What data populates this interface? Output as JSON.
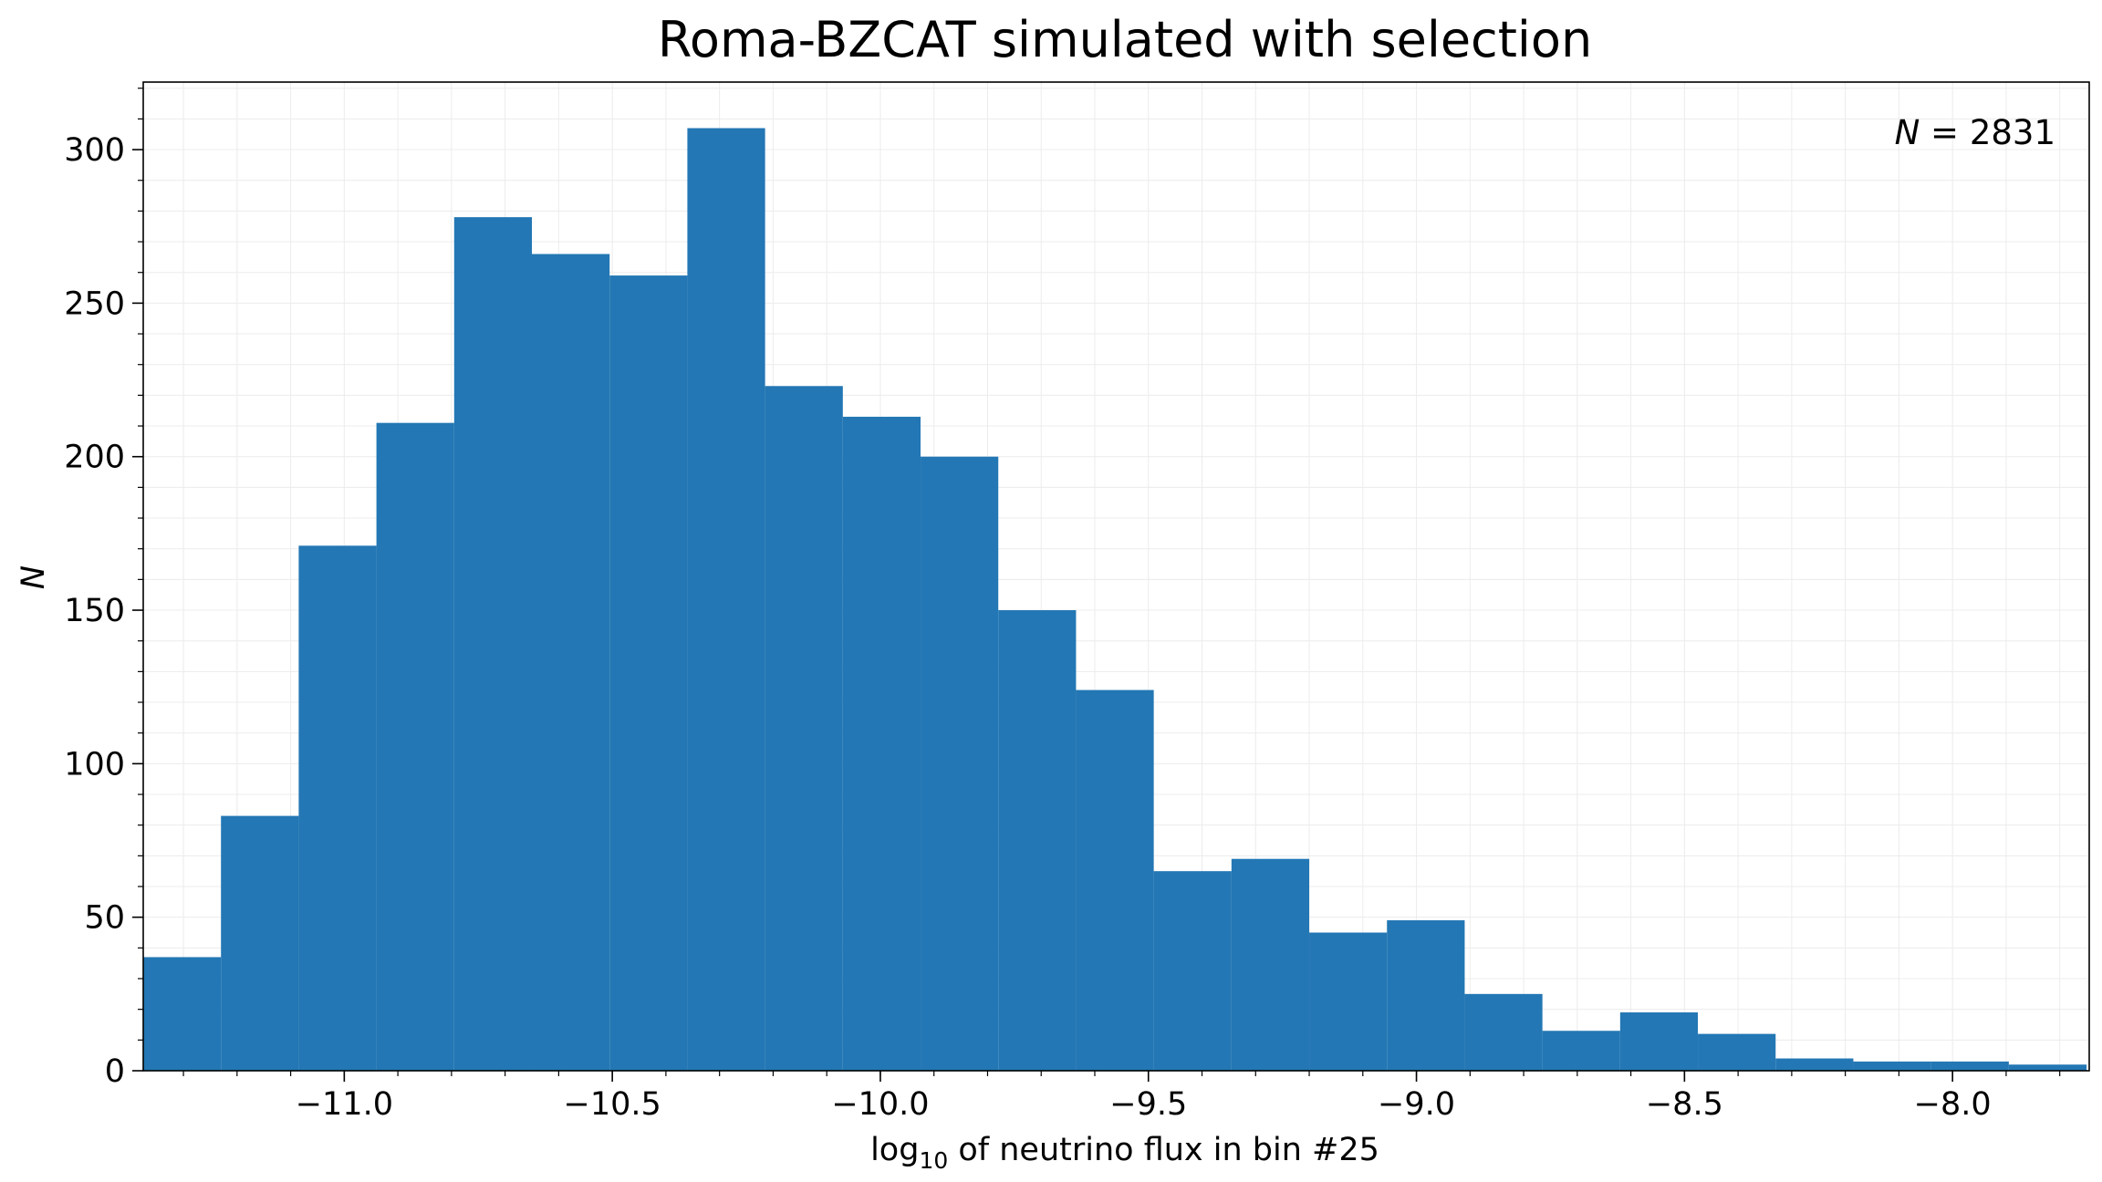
{
  "chart_data": {
    "type": "bar",
    "title": "Roma-BZCAT simulated with selection",
    "xlabel_prefix": "log",
    "xlabel_subscript": "10",
    "xlabel_suffix": " of neutrino flux in bin #25",
    "ylabel": "N",
    "annotation": {
      "var": "N",
      "op": " = ",
      "value": "2831"
    },
    "xlim": [
      -11.375,
      -7.745
    ],
    "ylim": [
      0,
      322
    ],
    "xticks": [
      -11.0,
      -10.5,
      -10.0,
      -9.5,
      -9.0,
      -8.5,
      -8.0
    ],
    "xtick_labels": [
      "−11.0",
      "−10.5",
      "−10.0",
      "−9.5",
      "−9.0",
      "−8.5",
      "−8.0"
    ],
    "yticks": [
      0,
      50,
      100,
      150,
      200,
      250,
      300
    ],
    "ytick_labels": [
      "0",
      "50",
      "100",
      "150",
      "200",
      "250",
      "300"
    ],
    "bin_edges": [
      -11.375,
      -11.23,
      -11.085,
      -10.94,
      -10.795,
      -10.65,
      -10.505,
      -10.36,
      -10.215,
      -10.07,
      -9.925,
      -9.78,
      -9.635,
      -9.49,
      -9.345,
      -9.2,
      -9.055,
      -8.91,
      -8.765,
      -8.62,
      -8.475,
      -8.33,
      -8.185,
      -8.04,
      -7.895,
      -7.75
    ],
    "values": [
      37,
      83,
      171,
      211,
      278,
      266,
      259,
      307,
      223,
      213,
      200,
      150,
      124,
      65,
      69,
      45,
      49,
      25,
      13,
      19,
      12,
      4,
      3,
      3,
      2
    ],
    "bar_color": "#2377b4",
    "grid": true,
    "legend": "none"
  }
}
